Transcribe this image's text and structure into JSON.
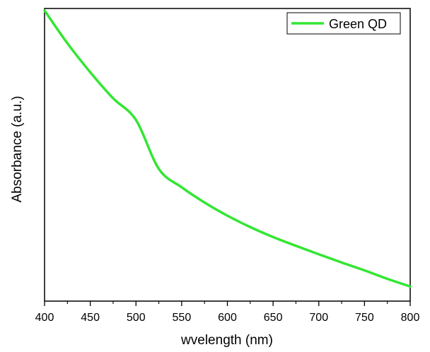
{
  "chart_data": {
    "type": "line",
    "xlabel": "wvelength (nm)",
    "ylabel": "Absorbance (a.u.)",
    "xlim": [
      400,
      800
    ],
    "ylim": [
      0,
      1
    ],
    "xticks": [
      400,
      450,
      500,
      550,
      600,
      650,
      700,
      750,
      800
    ],
    "yticks_labels": "none",
    "grid": false,
    "legend_position": "top-right",
    "series": [
      {
        "name": "Green QD",
        "color": "#33e633",
        "x": [
          400,
          425,
          450,
          475,
          500,
          525,
          550,
          575,
          600,
          625,
          650,
          675,
          700,
          725,
          750,
          775,
          800
        ],
        "y": [
          0.993,
          0.881,
          0.782,
          0.693,
          0.619,
          0.452,
          0.389,
          0.337,
          0.292,
          0.253,
          0.219,
          0.189,
          0.16,
          0.132,
          0.105,
          0.076,
          0.05
        ]
      }
    ]
  }
}
